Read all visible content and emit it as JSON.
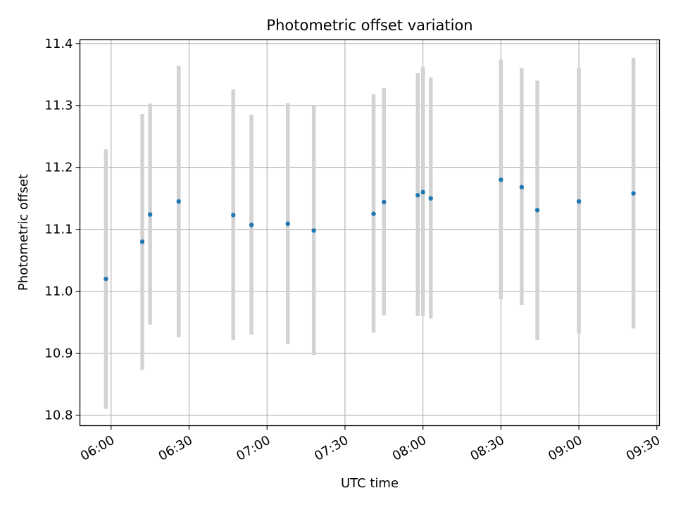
{
  "chart_data": {
    "type": "scatter",
    "title": "Photometric offset variation",
    "xlabel": "UTC time",
    "ylabel": "Photometric offset",
    "x_tick_labels": [
      "06:00",
      "06:30",
      "07:00",
      "07:30",
      "08:00",
      "08:30",
      "09:00",
      "09:30"
    ],
    "y_tick_labels": [
      "10.8",
      "10.9",
      "11.0",
      "11.1",
      "11.2",
      "11.3",
      "11.4"
    ],
    "xlim": [
      "05:48",
      "09:31"
    ],
    "ylim": [
      10.783,
      11.406
    ],
    "grid": true,
    "x_tick_label_rotation": "30 degrees",
    "series": [
      {
        "marker_color": "#1f77b4",
        "errorbar_color": "#d3d3d3",
        "points": [
          {
            "x": "05:58",
            "y": 11.02,
            "yerr_low": 10.81,
            "yerr_high": 11.229
          },
          {
            "x": "06:12",
            "y": 11.08,
            "yerr_low": 10.873,
            "yerr_high": 11.286
          },
          {
            "x": "06:15",
            "y": 11.124,
            "yerr_low": 10.946,
            "yerr_high": 11.303
          },
          {
            "x": "06:26",
            "y": 11.145,
            "yerr_low": 10.926,
            "yerr_high": 11.364
          },
          {
            "x": "06:47",
            "y": 11.123,
            "yerr_low": 10.921,
            "yerr_high": 11.326
          },
          {
            "x": "06:54",
            "y": 11.107,
            "yerr_low": 10.93,
            "yerr_high": 11.285
          },
          {
            "x": "07:08",
            "y": 11.109,
            "yerr_low": 10.915,
            "yerr_high": 11.304
          },
          {
            "x": "07:18",
            "y": 11.098,
            "yerr_low": 10.897,
            "yerr_high": 11.3
          },
          {
            "x": "07:41",
            "y": 11.125,
            "yerr_low": 10.933,
            "yerr_high": 11.318
          },
          {
            "x": "07:45",
            "y": 11.144,
            "yerr_low": 10.961,
            "yerr_high": 11.328
          },
          {
            "x": "07:58",
            "y": 11.155,
            "yerr_low": 10.96,
            "yerr_high": 11.352
          },
          {
            "x": "08:00",
            "y": 11.16,
            "yerr_low": 10.96,
            "yerr_high": 11.362
          },
          {
            "x": "08:03",
            "y": 11.15,
            "yerr_low": 10.956,
            "yerr_high": 11.345
          },
          {
            "x": "08:30",
            "y": 11.18,
            "yerr_low": 10.987,
            "yerr_high": 11.374
          },
          {
            "x": "08:38",
            "y": 11.168,
            "yerr_low": 10.978,
            "yerr_high": 11.36
          },
          {
            "x": "08:44",
            "y": 11.131,
            "yerr_low": 10.921,
            "yerr_high": 11.34
          },
          {
            "x": "09:00",
            "y": 11.145,
            "yerr_low": 10.932,
            "yerr_high": 11.36
          },
          {
            "x": "09:21",
            "y": 11.158,
            "yerr_low": 10.94,
            "yerr_high": 11.377
          }
        ]
      }
    ]
  }
}
